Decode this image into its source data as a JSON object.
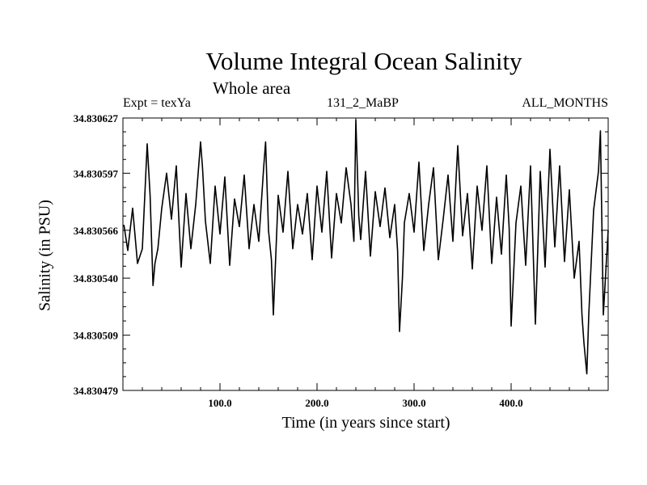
{
  "header": {
    "title": "Volume Integral Ocean Salinity",
    "subtitle": "Whole area",
    "expt": "Expt = texYa",
    "run": "131_2_MaBP",
    "months": "ALL_MONTHS"
  },
  "chart_data": {
    "type": "line",
    "title": "Volume Integral Ocean Salinity",
    "subtitle": "Whole area",
    "xlabel": "Time (in years since start)",
    "ylabel": "Salinity (in PSU)",
    "xlim": [
      0,
      500
    ],
    "ylim": [
      34.830479,
      34.830627
    ],
    "xticks": [
      100,
      200,
      300,
      400
    ],
    "xtick_labels": [
      "100.0",
      "200.0",
      "300.0",
      "400.0"
    ],
    "yticks": [
      34.830479,
      34.830509,
      34.83054,
      34.830566,
      34.830597,
      34.830627
    ],
    "ytick_labels": [
      "34.830479",
      "34.830509",
      "34.830540",
      "34.830566",
      "34.830597",
      "34.830627"
    ],
    "grid": false,
    "series": [
      {
        "color": "#000000",
        "x": [
          1,
          5,
          10,
          15,
          20,
          25,
          28,
          31,
          33,
          36,
          40,
          45,
          50,
          55,
          60,
          65,
          70,
          75,
          80,
          82,
          85,
          90,
          95,
          100,
          105,
          110,
          115,
          120,
          125,
          130,
          135,
          140,
          145,
          147,
          150,
          153,
          155,
          160,
          165,
          170,
          175,
          180,
          185,
          190,
          195,
          200,
          205,
          210,
          215,
          220,
          225,
          230,
          235,
          238,
          240,
          243,
          245,
          250,
          255,
          260,
          265,
          270,
          275,
          280,
          283,
          285,
          288,
          290,
          295,
          300,
          305,
          310,
          315,
          320,
          325,
          330,
          335,
          340,
          345,
          350,
          355,
          360,
          365,
          370,
          375,
          380,
          385,
          390,
          395,
          398,
          400,
          405,
          410,
          415,
          420,
          425,
          430,
          435,
          440,
          445,
          450,
          455,
          460,
          465,
          470,
          473,
          475,
          478,
          480,
          485,
          490,
          492,
          495,
          500
        ],
        "y": [
          34.830569,
          34.830555,
          34.830578,
          34.830548,
          34.830556,
          34.830613,
          34.830585,
          34.830536,
          34.830548,
          34.830556,
          34.830578,
          34.830597,
          34.830572,
          34.830601,
          34.830546,
          34.830586,
          34.830556,
          34.83058,
          34.830614,
          34.8306,
          34.830571,
          34.830548,
          34.83059,
          34.830564,
          34.830595,
          34.830547,
          34.830583,
          34.830568,
          34.830596,
          34.830556,
          34.83058,
          34.83056,
          34.8306,
          34.830614,
          34.830566,
          34.83055,
          34.83052,
          34.830585,
          34.830565,
          34.830598,
          34.830556,
          34.83058,
          34.830564,
          34.830586,
          34.83055,
          34.83059,
          34.830565,
          34.830598,
          34.830551,
          34.830586,
          34.83057,
          34.8306,
          34.83058,
          34.83056,
          34.830626,
          34.830574,
          34.830561,
          34.830598,
          34.830552,
          34.830587,
          34.830568,
          34.830589,
          34.830562,
          34.83058,
          34.830555,
          34.830511,
          34.83054,
          34.83057,
          34.830586,
          34.830565,
          34.830603,
          34.830555,
          34.83058,
          34.8306,
          34.83055,
          34.830572,
          34.830596,
          34.83056,
          34.830612,
          34.830563,
          34.830586,
          34.830545,
          34.83059,
          34.830566,
          34.830601,
          34.830548,
          34.830584,
          34.830553,
          34.830596,
          34.830567,
          34.830514,
          34.83057,
          34.83059,
          34.830547,
          34.830601,
          34.830515,
          34.830598,
          34.830546,
          34.83061,
          34.830557,
          34.830601,
          34.830549,
          34.830588,
          34.83054,
          34.83056,
          34.83052,
          34.830505,
          34.830488,
          34.83052,
          34.830577,
          34.830598,
          34.83062,
          34.83052,
          34.830566
        ]
      }
    ]
  }
}
